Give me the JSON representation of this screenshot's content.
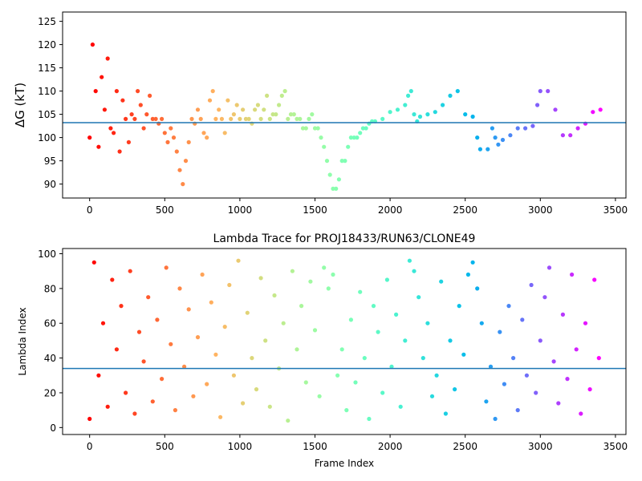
{
  "chart_data": [
    {
      "type": "scatter",
      "title": "",
      "xlabel": "",
      "ylabel": "ΔG (kT)",
      "xlim": [
        -180,
        3570
      ],
      "ylim": [
        87,
        127
      ],
      "xticks": [
        0,
        500,
        1000,
        1500,
        2000,
        2500,
        3000,
        3500
      ],
      "yticks": [
        90,
        95,
        100,
        105,
        110,
        115,
        120,
        125
      ],
      "colormap": "rainbow (red at frame 0 → violet at frame 3400)",
      "reference_line": {
        "y": 103.2,
        "color": "#1f77b4"
      },
      "grid": false,
      "series": [
        {
          "x": [
            0,
            20,
            40,
            60,
            80,
            100,
            120,
            140,
            160,
            180,
            200,
            220,
            240,
            260,
            280,
            300,
            320,
            340,
            360,
            380,
            400,
            420,
            440,
            460,
            480,
            500,
            520,
            540,
            560,
            580,
            600,
            620,
            640,
            660,
            680,
            700,
            720,
            740,
            760,
            780,
            800,
            820,
            840,
            860,
            880,
            900,
            920,
            940,
            960,
            980,
            1000,
            1020,
            1040,
            1060,
            1080,
            1100,
            1120,
            1140,
            1160,
            1180,
            1200,
            1220,
            1240,
            1260,
            1280,
            1300,
            1320,
            1340,
            1360,
            1380,
            1400,
            1420,
            1440,
            1460,
            1480,
            1500,
            1520,
            1540,
            1560,
            1580,
            1600,
            1620,
            1640,
            1660,
            1680,
            1700,
            1720,
            1740,
            1760,
            1780,
            1800,
            1820,
            1840,
            1860,
            1880,
            1900,
            1950,
            2000,
            2050,
            2100,
            2120,
            2140,
            2160,
            2180,
            2200,
            2250,
            2300,
            2350,
            2400,
            2450,
            2500,
            2550,
            2580,
            2600,
            2650,
            2680,
            2700,
            2720,
            2750,
            2800,
            2850,
            2900,
            2950,
            2980,
            3000,
            3050,
            3100,
            3150,
            3200,
            3250,
            3300,
            3350,
            3400
          ],
          "y": [
            100,
            120,
            110,
            98,
            113,
            106,
            117,
            102,
            101,
            110,
            97,
            108,
            104,
            99,
            105,
            104,
            110,
            107,
            102,
            105,
            109,
            104,
            104,
            103,
            104,
            101,
            99,
            102,
            100,
            97,
            93,
            90,
            95,
            99,
            104,
            103,
            106,
            104,
            101,
            100,
            108,
            110,
            104,
            106,
            104,
            101,
            108,
            104,
            105,
            107,
            104,
            106,
            104,
            104,
            103,
            106,
            107,
            104,
            106,
            109,
            104,
            105,
            105,
            107,
            109,
            110,
            104,
            105,
            105,
            104,
            104,
            102,
            102,
            104,
            105,
            102,
            102,
            100,
            98,
            95,
            92,
            89,
            89,
            91,
            95,
            95,
            98,
            100,
            100,
            100,
            101,
            102,
            102,
            103,
            103.5,
            103.5,
            104,
            105.5,
            106,
            107,
            109,
            110,
            105,
            103.5,
            104.5,
            105,
            105.5,
            107,
            109,
            110,
            105,
            104.5,
            100,
            97.5,
            97.5,
            102,
            100,
            98.5,
            99.5,
            100.5,
            102,
            102,
            102.5,
            107,
            110,
            110,
            106,
            100.5,
            100.5,
            102,
            103,
            105.5,
            106
          ]
        }
      ]
    },
    {
      "type": "scatter",
      "title": "Lambda Trace for PROJ18433/RUN63/CLONE49",
      "xlabel": "Frame Index",
      "ylabel": "Lambda Index",
      "xlim": [
        -180,
        3570
      ],
      "ylim": [
        -4,
        103
      ],
      "xticks": [
        0,
        500,
        1000,
        1500,
        2000,
        2500,
        3000,
        3500
      ],
      "yticks": [
        0,
        20,
        40,
        60,
        80,
        100
      ],
      "colormap": "rainbow (red at frame 0 → violet at frame 3400)",
      "reference_line": {
        "y": 34,
        "color": "#1f77b4"
      },
      "grid": false,
      "series": [
        {
          "x": [
            0,
            30,
            60,
            90,
            120,
            150,
            180,
            210,
            240,
            270,
            300,
            330,
            360,
            390,
            420,
            450,
            480,
            510,
            540,
            570,
            600,
            630,
            660,
            690,
            720,
            750,
            780,
            810,
            840,
            870,
            900,
            930,
            960,
            990,
            1020,
            1050,
            1080,
            1110,
            1140,
            1170,
            1200,
            1230,
            1260,
            1290,
            1320,
            1350,
            1380,
            1410,
            1440,
            1470,
            1500,
            1530,
            1560,
            1590,
            1620,
            1650,
            1680,
            1710,
            1740,
            1770,
            1800,
            1830,
            1860,
            1890,
            1920,
            1950,
            1980,
            2010,
            2040,
            2070,
            2100,
            2130,
            2160,
            2190,
            2220,
            2250,
            2280,
            2310,
            2340,
            2370,
            2400,
            2430,
            2460,
            2490,
            2520,
            2550,
            2580,
            2610,
            2640,
            2670,
            2700,
            2730,
            2760,
            2790,
            2820,
            2850,
            2880,
            2910,
            2940,
            2970,
            3000,
            3030,
            3060,
            3090,
            3120,
            3150,
            3180,
            3210,
            3240,
            3270,
            3300,
            3330,
            3360,
            3390
          ],
          "y": [
            5,
            95,
            30,
            60,
            12,
            85,
            45,
            70,
            20,
            90,
            8,
            55,
            38,
            75,
            15,
            62,
            28,
            92,
            48,
            10,
            80,
            35,
            68,
            18,
            52,
            88,
            25,
            72,
            42,
            6,
            58,
            82,
            30,
            96,
            14,
            66,
            40,
            22,
            86,
            50,
            12,
            76,
            34,
            60,
            4,
            90,
            45,
            70,
            26,
            84,
            56,
            18,
            92,
            80,
            88,
            30,
            45,
            10,
            62,
            26,
            78,
            40,
            5,
            70,
            55,
            20,
            85,
            35,
            65,
            12,
            50,
            96,
            90,
            75,
            40,
            60,
            18,
            30,
            84,
            8,
            50,
            22,
            70,
            42,
            88,
            95,
            80,
            60,
            15,
            35,
            5,
            55,
            25,
            70,
            40,
            10,
            62,
            30,
            82,
            20,
            50,
            75,
            92,
            38,
            14,
            65,
            28,
            88,
            45,
            8,
            60,
            22,
            85,
            40
          ]
        }
      ]
    }
  ]
}
